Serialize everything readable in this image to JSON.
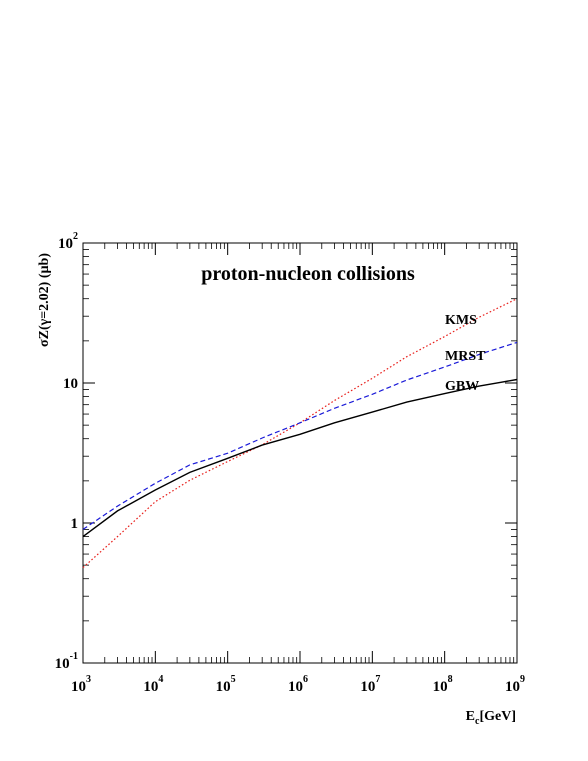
{
  "chart_data": {
    "type": "line",
    "title": "proton-nucleon collisions",
    "xlabel_main": "E",
    "xlabel_sub": "c",
    "xlabel_unit": "[GeV]",
    "ylabel": "σZ(γ=2.02) (µb)",
    "x_scale": "log",
    "y_scale": "log",
    "xlim": [
      1000,
      1000000000
    ],
    "ylim": [
      0.1,
      100
    ],
    "grid": false,
    "x_ticks": [
      {
        "base": "10",
        "exp": "3"
      },
      {
        "base": "10",
        "exp": "4"
      },
      {
        "base": "10",
        "exp": "5"
      },
      {
        "base": "10",
        "exp": "6"
      },
      {
        "base": "10",
        "exp": "7"
      },
      {
        "base": "10",
        "exp": "8"
      },
      {
        "base": "10",
        "exp": "9"
      }
    ],
    "y_ticks": [
      {
        "base": "10",
        "exp": "-1"
      },
      {
        "base": "1",
        "exp": ""
      },
      {
        "base": "10",
        "exp": ""
      },
      {
        "base": "10",
        "exp": "2"
      }
    ],
    "series": [
      {
        "name": "KMS",
        "color": "#e8201c",
        "style": "dotted",
        "x": [
          1000,
          3000,
          10000,
          30000,
          100000,
          300000,
          1000000,
          3000000,
          10000000,
          30000000,
          100000000,
          300000000,
          1000000000
        ],
        "y": [
          0.48,
          0.8,
          1.42,
          2.02,
          2.75,
          3.62,
          5.2,
          7.5,
          10.8,
          15.4,
          21.5,
          29.5,
          40.0
        ]
      },
      {
        "name": "MRST",
        "color": "#1a1ad8",
        "style": "dashed",
        "x": [
          1000,
          3000,
          10000,
          30000,
          100000,
          300000,
          1000000,
          3000000,
          10000000,
          30000000,
          100000000,
          300000000,
          1000000000
        ],
        "y": [
          0.9,
          1.32,
          1.92,
          2.6,
          3.15,
          4.05,
          5.2,
          6.6,
          8.3,
          10.5,
          13.0,
          16.0,
          19.5
        ]
      },
      {
        "name": "GBW",
        "color": "#000000",
        "style": "solid",
        "x": [
          1000,
          3000,
          10000,
          30000,
          100000,
          300000,
          1000000,
          3000000,
          10000000,
          30000000,
          100000000,
          300000000,
          1000000000
        ],
        "y": [
          0.8,
          1.22,
          1.72,
          2.3,
          2.9,
          3.6,
          4.3,
          5.2,
          6.2,
          7.3,
          8.4,
          9.5,
          10.6
        ]
      }
    ]
  }
}
